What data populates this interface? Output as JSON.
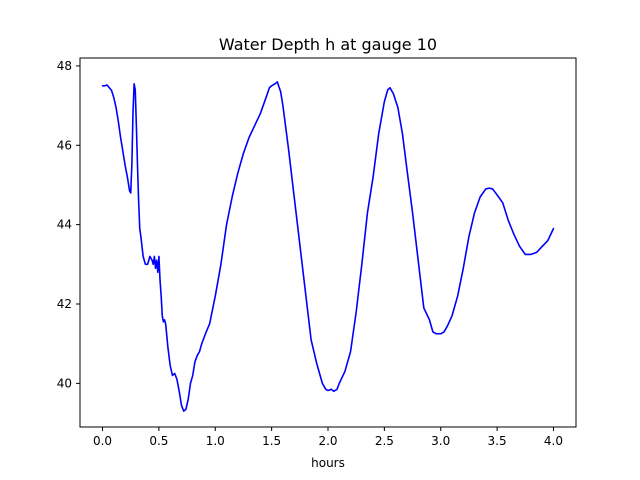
{
  "chart_data": {
    "type": "line",
    "title": "Water Depth h at gauge 10",
    "xlabel": "hours",
    "ylabel": "",
    "xlim": [
      -0.2,
      4.2
    ],
    "ylim": [
      38.9,
      48.2
    ],
    "x_ticks": [
      0.0,
      0.5,
      1.0,
      1.5,
      2.0,
      2.5,
      3.0,
      3.5,
      4.0
    ],
    "x_tick_labels": [
      "0.0",
      "0.5",
      "1.0",
      "1.5",
      "2.0",
      "2.5",
      "3.0",
      "3.5",
      "4.0"
    ],
    "y_ticks": [
      40,
      42,
      44,
      46,
      48
    ],
    "y_tick_labels": [
      "40",
      "42",
      "44",
      "46",
      "48"
    ],
    "grid": false,
    "legend": "none",
    "series": [
      {
        "color": "#0000ff",
        "x": [
          0.0,
          0.02,
          0.04,
          0.06,
          0.08,
          0.1,
          0.12,
          0.14,
          0.16,
          0.18,
          0.2,
          0.22,
          0.24,
          0.25,
          0.26,
          0.27,
          0.28,
          0.29,
          0.3,
          0.31,
          0.32,
          0.33,
          0.34,
          0.36,
          0.38,
          0.4,
          0.42,
          0.44,
          0.45,
          0.46,
          0.47,
          0.48,
          0.49,
          0.5,
          0.51,
          0.52,
          0.53,
          0.54,
          0.55,
          0.56,
          0.57,
          0.58,
          0.6,
          0.62,
          0.64,
          0.66,
          0.68,
          0.7,
          0.72,
          0.74,
          0.76,
          0.78,
          0.8,
          0.82,
          0.84,
          0.86,
          0.88,
          0.9,
          0.92,
          0.95,
          1.0,
          1.05,
          1.1,
          1.15,
          1.2,
          1.25,
          1.3,
          1.35,
          1.4,
          1.45,
          1.48,
          1.5,
          1.53,
          1.55,
          1.58,
          1.6,
          1.65,
          1.7,
          1.75,
          1.8,
          1.85,
          1.9,
          1.95,
          1.98,
          2.0,
          2.03,
          2.05,
          2.08,
          2.1,
          2.15,
          2.2,
          2.25,
          2.3,
          2.35,
          2.4,
          2.45,
          2.5,
          2.53,
          2.55,
          2.58,
          2.62,
          2.66,
          2.7,
          2.75,
          2.8,
          2.85,
          2.9,
          2.93,
          2.96,
          3.0,
          3.03,
          3.06,
          3.1,
          3.15,
          3.2,
          3.25,
          3.3,
          3.35,
          3.4,
          3.43,
          3.46,
          3.5,
          3.55,
          3.6,
          3.65,
          3.7,
          3.75,
          3.8,
          3.85,
          3.9,
          3.95,
          4.0
        ],
        "y": [
          47.5,
          47.5,
          47.52,
          47.45,
          47.38,
          47.2,
          46.95,
          46.6,
          46.2,
          45.85,
          45.5,
          45.2,
          44.85,
          44.8,
          45.5,
          46.8,
          47.55,
          47.4,
          46.5,
          45.5,
          44.6,
          43.9,
          43.7,
          43.2,
          43.0,
          43.0,
          43.2,
          43.1,
          43.0,
          43.2,
          42.9,
          43.1,
          42.8,
          43.2,
          42.6,
          42.2,
          41.7,
          41.55,
          41.6,
          41.5,
          41.2,
          40.9,
          40.45,
          40.2,
          40.25,
          40.1,
          39.8,
          39.45,
          39.3,
          39.35,
          39.6,
          40.0,
          40.2,
          40.55,
          40.7,
          40.8,
          41.0,
          41.15,
          41.3,
          41.5,
          42.2,
          43.0,
          44.0,
          44.7,
          45.3,
          45.8,
          46.2,
          46.5,
          46.8,
          47.2,
          47.45,
          47.5,
          47.55,
          47.6,
          47.35,
          47.0,
          45.9,
          44.7,
          43.5,
          42.3,
          41.1,
          40.5,
          40.0,
          39.85,
          39.82,
          39.85,
          39.8,
          39.85,
          40.0,
          40.3,
          40.8,
          41.8,
          43.0,
          44.3,
          45.2,
          46.3,
          47.1,
          47.4,
          47.45,
          47.3,
          46.95,
          46.3,
          45.4,
          44.3,
          43.1,
          41.9,
          41.6,
          41.3,
          41.25,
          41.25,
          41.3,
          41.45,
          41.7,
          42.2,
          42.9,
          43.7,
          44.3,
          44.7,
          44.9,
          44.92,
          44.9,
          44.75,
          44.55,
          44.1,
          43.75,
          43.45,
          43.25,
          43.25,
          43.3,
          43.45,
          43.6,
          43.9
        ]
      }
    ]
  }
}
